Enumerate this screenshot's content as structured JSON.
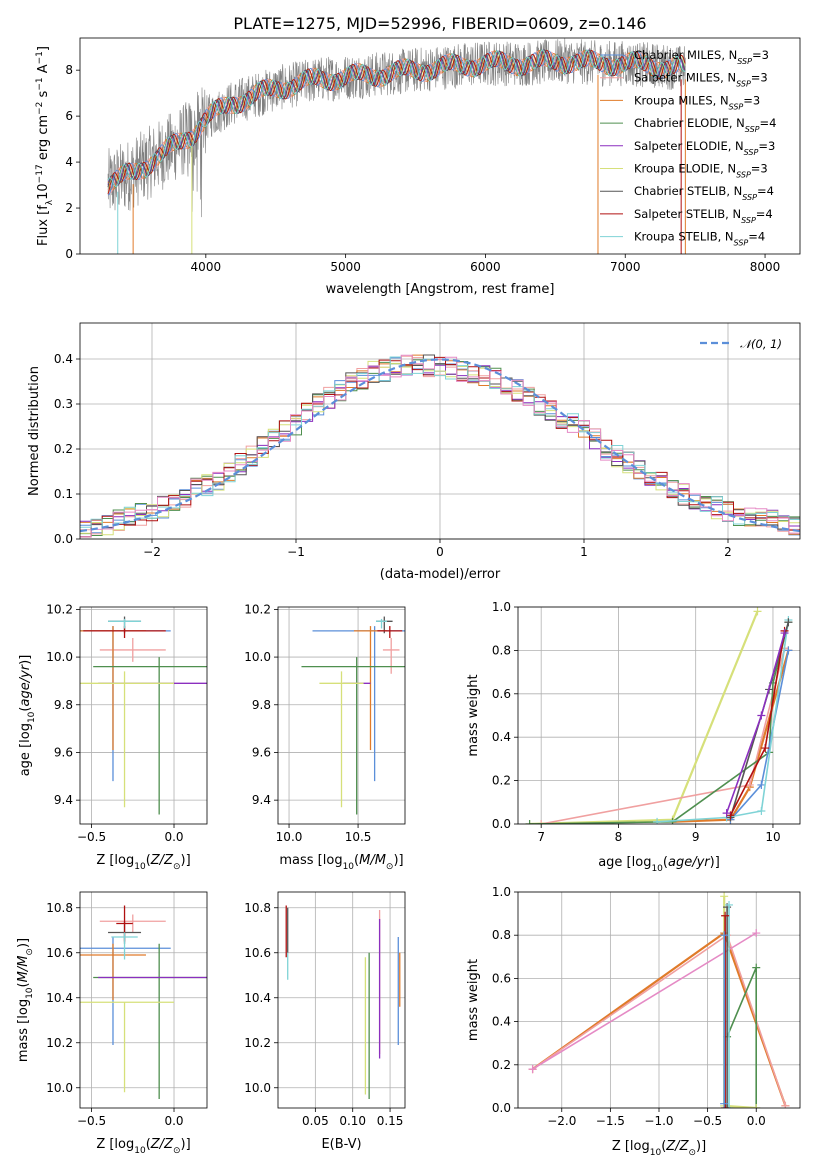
{
  "figure": {
    "title": "PLATE=1275, MJD=52996, FIBERID=0609, z=0.146"
  },
  "colors": {
    "Chabrier MILES": "#5b8fd9",
    "Salpeter MILES": "#f0a0a0",
    "Kroupa MILES": "#e07b2a",
    "Chabrier ELODIE": "#4f8f4f",
    "Salpeter ELODIE": "#8b2fbf",
    "Kroupa ELODIE": "#d6e07a",
    "Chabrier STELIB": "#555555",
    "Salpeter STELIB": "#b01010",
    "Kroupa STELIB": "#7fd3d6",
    "data": "#808080",
    "normal": "#5b8fd9",
    "hist_extra": "#e58ac5"
  },
  "chart_data": [
    {
      "id": "spectrum",
      "type": "line",
      "xlabel": "wavelength [Angstrom, rest frame]",
      "ylabel": "Flux [f_λ 10^-17 erg cm^-2 s^-1 A^-1]",
      "xlim": [
        3100,
        8250
      ],
      "ylim": [
        0,
        9.4
      ],
      "xticks": [
        4000,
        5000,
        6000,
        7000,
        8000
      ],
      "yticks": [
        0,
        2,
        4,
        6,
        8
      ],
      "legend_position": "top-right",
      "legend": [
        {
          "name": "Chabrier MILES",
          "label": "Chabrier MILES, N",
          "sub": "SSP",
          "tail": "=3"
        },
        {
          "name": "Salpeter MILES",
          "label": "Salpeter MILES, N",
          "sub": "SSP",
          "tail": "=3"
        },
        {
          "name": "Kroupa MILES",
          "label": "Kroupa MILES, N",
          "sub": "SSP",
          "tail": "=3"
        },
        {
          "name": "Chabrier ELODIE",
          "label": "Chabrier ELODIE, N",
          "sub": "SSP",
          "tail": "=4"
        },
        {
          "name": "Salpeter ELODIE",
          "label": "Salpeter ELODIE, N",
          "sub": "SSP",
          "tail": "=3"
        },
        {
          "name": "Kroupa ELODIE",
          "label": "Kroupa ELODIE, N",
          "sub": "SSP",
          "tail": "=3"
        },
        {
          "name": "Chabrier STELIB",
          "label": "Chabrier STELIB, N",
          "sub": "SSP",
          "tail": "=4"
        },
        {
          "name": "Salpeter STELIB",
          "label": "Salpeter STELIB, N",
          "sub": "SSP",
          "tail": "=4"
        },
        {
          "name": "Kroupa STELIB",
          "label": "Kroupa STELIB, N",
          "sub": "SSP",
          "tail": "=4"
        }
      ],
      "continuum": {
        "x": [
          3300,
          3500,
          3700,
          3900,
          4000,
          4200,
          4500,
          4800,
          5000,
          5200,
          5500,
          5800,
          6000,
          6300,
          6600,
          6800,
          7000,
          7200,
          7400
        ],
        "y": [
          3.0,
          3.6,
          4.4,
          5.2,
          5.9,
          6.6,
          7.2,
          7.6,
          7.7,
          7.8,
          8.0,
          8.2,
          8.3,
          8.3,
          8.4,
          8.3,
          8.3,
          8.2,
          8.1
        ]
      }
    },
    {
      "id": "residuals",
      "type": "bar",
      "xlabel": "(data-model)/error",
      "ylabel": "Normed distribution",
      "xlim": [
        -2.5,
        2.5
      ],
      "ylim": [
        0,
        0.48
      ],
      "xticks": [
        -2,
        -1,
        0,
        1,
        2
      ],
      "yticks": [
        0.0,
        0.1,
        0.2,
        0.3,
        0.4
      ],
      "bin_edges_start": -2.5,
      "bin_width": 0.1,
      "base_values": [
        0.02,
        0.025,
        0.03,
        0.04,
        0.05,
        0.055,
        0.06,
        0.07,
        0.08,
        0.095,
        0.11,
        0.12,
        0.13,
        0.15,
        0.165,
        0.185,
        0.205,
        0.22,
        0.24,
        0.255,
        0.28,
        0.3,
        0.315,
        0.33,
        0.345,
        0.355,
        0.37,
        0.375,
        0.38,
        0.385,
        0.385,
        0.385,
        0.385,
        0.38,
        0.375,
        0.37,
        0.365,
        0.355,
        0.345,
        0.33,
        0.315,
        0.3,
        0.285,
        0.27,
        0.255,
        0.24,
        0.22,
        0.2,
        0.185,
        0.17,
        0.155,
        0.14,
        0.125,
        0.11,
        0.1,
        0.09,
        0.08,
        0.07,
        0.06,
        0.055,
        0.05,
        0.045,
        0.04,
        0.035,
        0.03
      ],
      "legend_position": "top-right",
      "normal_curve": {
        "name": "𝒩(0, 1)",
        "mu": 0,
        "sigma": 1
      }
    },
    {
      "id": "age-vs-Z",
      "type": "scatter",
      "xlabel": "Z [log10(Z/Z⊙)]",
      "ylabel": "age [log10(age/yr)]",
      "xlim": [
        -0.57,
        0.2
      ],
      "ylim": [
        9.3,
        10.21
      ],
      "xticks": [
        -0.5,
        0.0
      ],
      "yticks": [
        9.4,
        9.6,
        9.8,
        10.0,
        10.2
      ],
      "points": [
        {
          "series": "Chabrier MILES",
          "x": -0.37,
          "y": 10.11,
          "xerr": 0.35,
          "yerr": [
            0.63,
            0.02
          ]
        },
        {
          "series": "Salpeter MILES",
          "x": -0.25,
          "y": 10.03,
          "xerr": 0.2,
          "yerr": [
            0.05,
            0.05
          ]
        },
        {
          "series": "Kroupa MILES",
          "x": -0.37,
          "y": 10.11,
          "xerr": 0.2,
          "yerr": [
            0.5,
            0.02
          ]
        },
        {
          "series": "Chabrier ELODIE",
          "x": -0.09,
          "y": 9.96,
          "xerr": 0.4,
          "yerr": [
            0.62,
            0.04
          ]
        },
        {
          "series": "Salpeter ELODIE",
          "x": -0.09,
          "y": 9.89,
          "xerr": 0.37,
          "yerr": [
            0.0,
            0.0
          ]
        },
        {
          "series": "Kroupa ELODIE",
          "x": -0.3,
          "y": 9.89,
          "xerr": 0.3,
          "yerr": [
            0.52,
            0.05
          ]
        },
        {
          "series": "Chabrier STELIB",
          "x": -0.3,
          "y": 10.15,
          "xerr": 0.1,
          "yerr": [
            0.05,
            0.02
          ]
        },
        {
          "series": "Salpeter STELIB",
          "x": -0.3,
          "y": 10.11,
          "xerr": 0.25,
          "yerr": [
            0.03,
            0.02
          ]
        },
        {
          "series": "Kroupa STELIB",
          "x": -0.3,
          "y": 10.15,
          "xerr": 0.1,
          "yerr": [
            0.03,
            0.01
          ]
        }
      ]
    },
    {
      "id": "age-vs-mass",
      "type": "scatter",
      "xlabel": "mass [log10(M/M⊙)]",
      "ylabel": "",
      "xlim": [
        9.92,
        10.84
      ],
      "ylim": [
        9.3,
        10.21
      ],
      "xticks": [
        10.0,
        10.5
      ],
      "yticks": [
        9.4,
        9.6,
        9.8,
        10.0,
        10.2
      ],
      "points": [
        {
          "series": "Chabrier MILES",
          "x": 10.62,
          "y": 10.11,
          "xerr": 0.45,
          "yerr": [
            0.63,
            0.02
          ]
        },
        {
          "series": "Salpeter MILES",
          "x": 10.74,
          "y": 10.03,
          "xerr": 0.06,
          "yerr": [
            0.1,
            0.05
          ]
        },
        {
          "series": "Kroupa MILES",
          "x": 10.59,
          "y": 10.11,
          "xerr": 0.12,
          "yerr": [
            0.5,
            0.02
          ]
        },
        {
          "series": "Chabrier ELODIE",
          "x": 10.49,
          "y": 9.96,
          "xerr": 0.4,
          "yerr": [
            0.62,
            0.04
          ]
        },
        {
          "series": "Salpeter ELODIE",
          "x": 10.49,
          "y": 9.89,
          "xerr": 0.1,
          "yerr": [
            0.0,
            0.0
          ]
        },
        {
          "series": "Kroupa ELODIE",
          "x": 10.38,
          "y": 9.89,
          "xerr": 0.16,
          "yerr": [
            0.52,
            0.05
          ]
        },
        {
          "series": "Chabrier STELIB",
          "x": 10.69,
          "y": 10.15,
          "xerr": 0.06,
          "yerr": [
            0.05,
            0.02
          ]
        },
        {
          "series": "Salpeter STELIB",
          "x": 10.73,
          "y": 10.11,
          "xerr": 0.09,
          "yerr": [
            0.03,
            0.02
          ]
        },
        {
          "series": "Kroupa STELIB",
          "x": 10.67,
          "y": 10.15,
          "xerr": 0.04,
          "yerr": [
            0.03,
            0.01
          ]
        }
      ]
    },
    {
      "id": "mass-weight-vs-age",
      "type": "line",
      "xlabel": "age [log10(age/yr)]",
      "ylabel": "mass weight",
      "xlim": [
        6.7,
        10.35
      ],
      "ylim": [
        0,
        1.0
      ],
      "xticks": [
        7,
        8,
        9,
        10
      ],
      "yticks": [
        0.0,
        0.2,
        0.4,
        0.6,
        0.8,
        1.0
      ],
      "series": [
        {
          "name": "Kroupa ELODIE",
          "x": [
            6.85,
            8.7,
            9.8
          ],
          "y": [
            0.0,
            0.02,
            0.98
          ]
        },
        {
          "name": "Kroupa MILES",
          "x": [
            8.7,
            9.45,
            9.7,
            10.2
          ],
          "y": [
            0.01,
            0.02,
            0.17,
            0.8
          ]
        },
        {
          "name": "Salpeter MILES",
          "x": [
            7.0,
            9.7,
            10.15
          ],
          "y": [
            0.0,
            0.18,
            0.81
          ]
        },
        {
          "name": "Chabrier ELODIE",
          "x": [
            6.85,
            8.7,
            9.95,
            10.0,
            10.2
          ],
          "y": [
            0.0,
            0.01,
            0.33,
            0.65,
            0.93
          ]
        },
        {
          "name": "Chabrier MILES",
          "x": [
            9.45,
            9.85,
            10.2
          ],
          "y": [
            0.02,
            0.18,
            0.8
          ]
        },
        {
          "name": "Kroupa STELIB",
          "x": [
            8.5,
            9.4,
            9.85,
            10.2
          ],
          "y": [
            0.01,
            0.03,
            0.06,
            0.94
          ]
        },
        {
          "name": "Chabrier STELIB",
          "x": [
            9.45,
            9.95,
            10.2
          ],
          "y": [
            0.03,
            0.62,
            0.93
          ]
        },
        {
          "name": "Salpeter STELIB",
          "x": [
            9.45,
            9.9,
            10.15
          ],
          "y": [
            0.04,
            0.35,
            0.89
          ]
        },
        {
          "name": "Salpeter ELODIE",
          "x": [
            9.4,
            9.85,
            10.15
          ],
          "y": [
            0.05,
            0.5,
            0.88
          ]
        }
      ]
    },
    {
      "id": "mass-vs-Z",
      "type": "scatter",
      "xlabel": "Z [log10(Z/Z⊙)]",
      "ylabel": "mass [log10(M/M⊙)]",
      "xlim": [
        -0.57,
        0.2
      ],
      "ylim": [
        9.91,
        10.87
      ],
      "xticks": [
        -0.5,
        0.0
      ],
      "yticks": [
        10.0,
        10.2,
        10.4,
        10.6,
        10.8
      ],
      "points": [
        {
          "series": "Chabrier MILES",
          "x": -0.37,
          "y": 10.62,
          "xerr": 0.35,
          "yerr": [
            0.43,
            0.05
          ]
        },
        {
          "series": "Salpeter MILES",
          "x": -0.25,
          "y": 10.74,
          "xerr": 0.2,
          "yerr": [
            0.05,
            0.03
          ]
        },
        {
          "series": "Kroupa MILES",
          "x": -0.37,
          "y": 10.59,
          "xerr": 0.2,
          "yerr": [
            0.2,
            0.05
          ]
        },
        {
          "series": "Chabrier ELODIE",
          "x": -0.09,
          "y": 10.49,
          "xerr": 0.4,
          "yerr": [
            0.54,
            0.15
          ]
        },
        {
          "series": "Salpeter ELODIE",
          "x": -0.09,
          "y": 10.49,
          "xerr": 0.37,
          "yerr": [
            0.0,
            0.0
          ]
        },
        {
          "series": "Kroupa ELODIE",
          "x": -0.3,
          "y": 10.38,
          "xerr": 0.3,
          "yerr": [
            0.4,
            0.0
          ]
        },
        {
          "series": "Chabrier STELIB",
          "x": -0.3,
          "y": 10.69,
          "xerr": 0.1,
          "yerr": [
            0.05,
            0.05
          ]
        },
        {
          "series": "Salpeter STELIB",
          "x": -0.3,
          "y": 10.73,
          "xerr": 0.05,
          "yerr": [
            0.08,
            0.08
          ]
        },
        {
          "series": "Kroupa STELIB",
          "x": -0.3,
          "y": 10.67,
          "xerr": 0.08,
          "yerr": [
            0.1,
            0.02
          ]
        }
      ]
    },
    {
      "id": "mass-vs-ebv",
      "type": "scatter",
      "xlabel": "E(B-V)",
      "ylabel": "",
      "xlim": [
        0.0,
        0.17
      ],
      "ylim": [
        9.91,
        10.87
      ],
      "xticks": [
        0.05,
        0.1,
        0.15
      ],
      "yticks": [
        10.0,
        10.2,
        10.4,
        10.6,
        10.8
      ],
      "points": [
        {
          "series": "Chabrier MILES",
          "x": 0.161,
          "y": 10.62,
          "yerr": [
            0.43,
            0.05
          ]
        },
        {
          "series": "Salpeter MILES",
          "x": 0.136,
          "y": 10.55,
          "yerr": [
            0.4,
            0.24
          ]
        },
        {
          "series": "Kroupa MILES",
          "x": 0.163,
          "y": 10.5,
          "yerr": [
            0.14,
            0.1
          ]
        },
        {
          "series": "Chabrier ELODIE",
          "x": 0.122,
          "y": 10.25,
          "yerr": [
            0.3,
            0.35
          ]
        },
        {
          "series": "Salpeter ELODIE",
          "x": 0.136,
          "y": 10.45,
          "yerr": [
            0.32,
            0.3
          ]
        },
        {
          "series": "Kroupa ELODIE",
          "x": 0.117,
          "y": 10.25,
          "yerr": [
            0.28,
            0.33
          ]
        },
        {
          "series": "Chabrier STELIB",
          "x": 0.013,
          "y": 10.7,
          "yerr": [
            0.1,
            0.1
          ]
        },
        {
          "series": "Salpeter STELIB",
          "x": 0.011,
          "y": 10.7,
          "yerr": [
            0.12,
            0.11
          ]
        },
        {
          "series": "Kroupa STELIB",
          "x": 0.013,
          "y": 10.55,
          "yerr": [
            0.07,
            0.05
          ]
        }
      ]
    },
    {
      "id": "mass-weight-vs-Z",
      "type": "line",
      "xlabel": "Z [log10(Z/Z⊙)]",
      "ylabel": "mass weight",
      "xlim": [
        -2.45,
        0.45
      ],
      "ylim": [
        0,
        1.0
      ],
      "xticks": [
        -2.0,
        -1.5,
        -1.0,
        -0.5,
        0.0
      ],
      "yticks": [
        0.0,
        0.2,
        0.4,
        0.6,
        0.8,
        1.0
      ],
      "series": [
        {
          "name": "Kroupa MILES",
          "x": [
            -2.3,
            -0.33,
            0.3
          ],
          "y": [
            0.18,
            0.81,
            0.01
          ]
        },
        {
          "name": "Salpeter MILES",
          "x": [
            -2.3,
            -0.3,
            0.3
          ],
          "y": [
            0.18,
            0.8,
            0.01
          ]
        },
        {
          "name": "hist_extra",
          "x": [
            -2.3,
            0.0
          ],
          "y": [
            0.18,
            0.81
          ]
        },
        {
          "name": "Chabrier ELODIE",
          "x": [
            -0.3,
            0.0,
            0.0
          ],
          "y": [
            0.33,
            0.65,
            0.0
          ]
        },
        {
          "name": "Kroupa ELODIE",
          "x": [
            -0.33,
            -0.33,
            0.0
          ],
          "y": [
            0.98,
            0.01,
            0.0
          ]
        },
        {
          "name": "Chabrier STELIB",
          "x": [
            -0.3,
            -0.3
          ],
          "y": [
            0.0,
            0.93
          ]
        },
        {
          "name": "Kroupa STELIB",
          "x": [
            -0.28,
            -0.28
          ],
          "y": [
            0.0,
            0.94
          ]
        },
        {
          "name": "Salpeter STELIB",
          "x": [
            -0.32,
            -0.32
          ],
          "y": [
            0.0,
            0.89
          ]
        },
        {
          "name": "Chabrier MILES",
          "x": [
            -0.33,
            -0.33
          ],
          "y": [
            0.02,
            0.8
          ]
        }
      ]
    }
  ]
}
